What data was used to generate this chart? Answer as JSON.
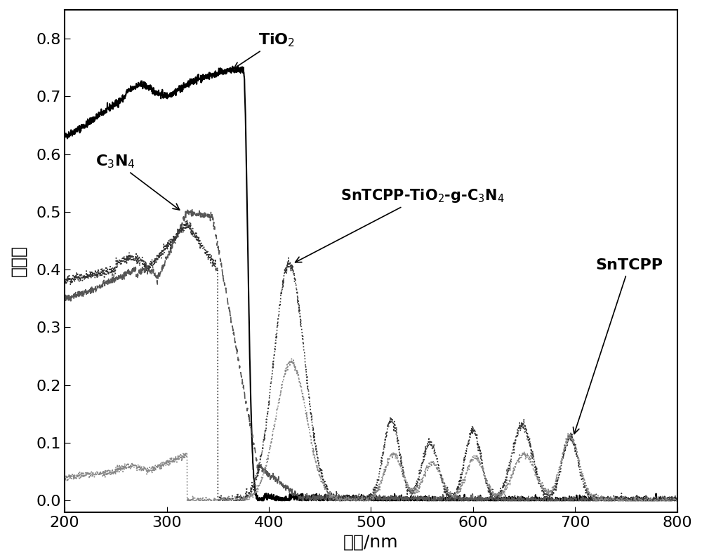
{
  "xlabel": "波长/nm",
  "ylabel": "吸光度",
  "xlim": [
    200,
    800
  ],
  "ylim": [
    -0.02,
    0.85
  ],
  "xticks": [
    200,
    300,
    400,
    500,
    600,
    700,
    800
  ],
  "yticks": [
    0.0,
    0.1,
    0.2,
    0.3,
    0.4,
    0.5,
    0.6,
    0.7,
    0.8
  ],
  "title_TiO2": "TiO$_2$",
  "title_C3N4": "C$_3$N$_4$",
  "title_SnTCPP_composite": "SnTCPP-TiO$_2$-g-C$_3$N$_4$",
  "title_SnTCPP": "SnTCPP",
  "line_color": "#000000",
  "bg_color": "#ffffff",
  "font_size_label": 18,
  "font_size_tick": 16,
  "font_size_annotation": 14
}
